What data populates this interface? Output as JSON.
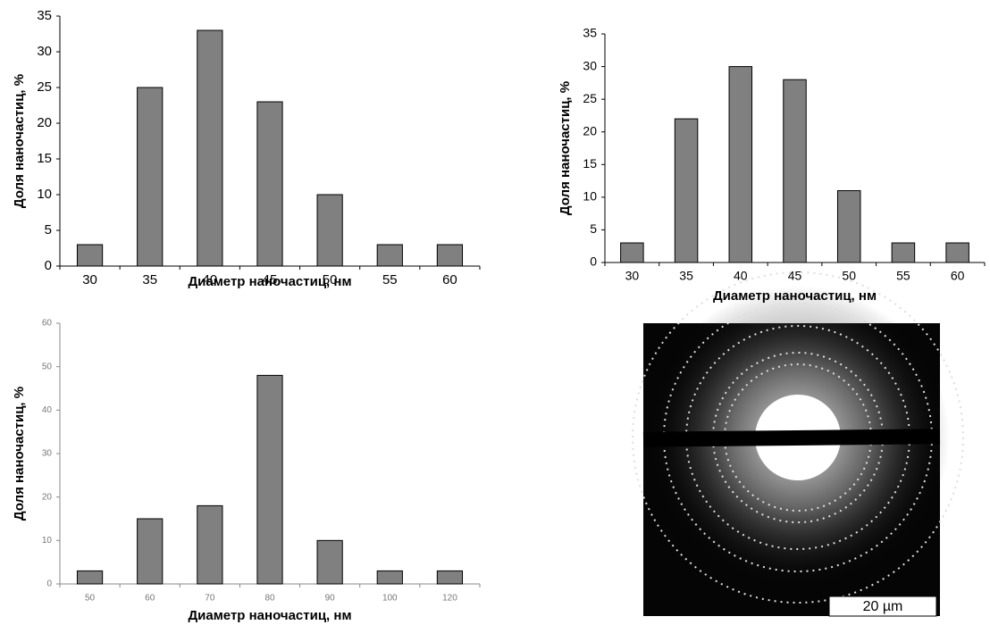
{
  "chart_data": [
    {
      "type": "bar",
      "x_label": "Диаметр наночастиц, нм",
      "y_label": "Доля наночастиц, %",
      "categories": [
        "30",
        "35",
        "40",
        "45",
        "50",
        "55",
        "60"
      ],
      "values": [
        3,
        25,
        33,
        23,
        10,
        3,
        3
      ],
      "color": "#808080",
      "ylim": [
        0,
        35
      ],
      "yticks": [
        0,
        5,
        10,
        15,
        20,
        25,
        30,
        35
      ]
    },
    {
      "type": "bar",
      "x_label": "Диаметр наночастиц, нм",
      "y_label": "Доля наночастиц, %",
      "categories": [
        "30",
        "35",
        "40",
        "45",
        "50",
        "55",
        "60"
      ],
      "values": [
        3,
        22,
        30,
        28,
        11,
        3,
        3
      ],
      "color": "#808080",
      "ylim": [
        0,
        35
      ],
      "yticks": [
        0,
        5,
        10,
        15,
        20,
        25,
        30,
        35
      ]
    },
    {
      "type": "bar",
      "x_label": "Диаметр наночастиц, нм",
      "y_label": "Доля наночастиц, %",
      "categories": [
        "50",
        "60",
        "70",
        "80",
        "90",
        "100",
        "120"
      ],
      "values": [
        3,
        15,
        18,
        48,
        10,
        3,
        3
      ],
      "color": "#808080",
      "ylim": [
        0,
        60
      ],
      "yticks": [
        0,
        10,
        20,
        30,
        40,
        50,
        60
      ]
    }
  ],
  "image": {
    "scale_bar": "20 µm"
  }
}
